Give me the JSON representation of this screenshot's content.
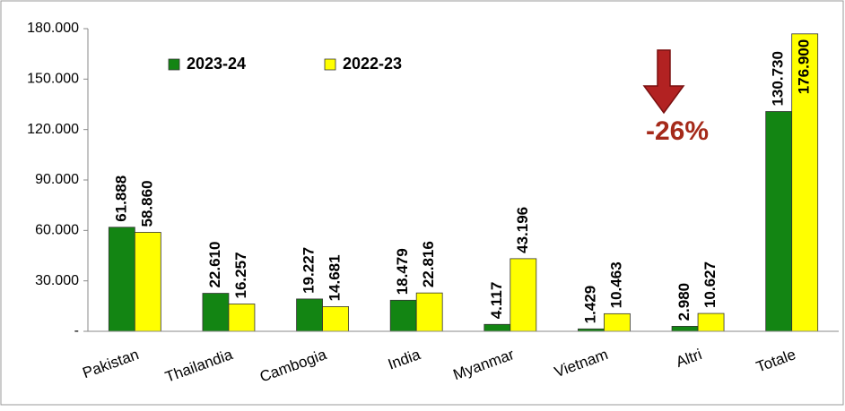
{
  "chart_data": {
    "type": "bar",
    "categories": [
      "Pakistan",
      "Thailandia",
      "Cambogia",
      "India",
      "Myanmar",
      "Vietnam",
      "Altri",
      "Totale"
    ],
    "series": [
      {
        "name": "2023-24",
        "color": "#138513",
        "values": [
          61888,
          22610,
          19227,
          18479,
          4117,
          1429,
          2980,
          130730
        ],
        "value_labels": [
          "61.888",
          "22.610",
          "19.227",
          "18.479",
          "4.117",
          "1.429",
          "2.980",
          "130.730"
        ]
      },
      {
        "name": "2022-23",
        "color": "#ffff00",
        "values": [
          58860,
          16257,
          14681,
          22816,
          43196,
          10463,
          10627,
          176900
        ],
        "value_labels": [
          "58.860",
          "16.257",
          "14.681",
          "22.816",
          "43.196",
          "10.463",
          "10.627",
          "176.900"
        ]
      }
    ],
    "ylim": [
      0,
      180000
    ],
    "yticks": [
      {
        "value": 0,
        "label": "-"
      },
      {
        "value": 30000,
        "label": "30.000"
      },
      {
        "value": 60000,
        "label": "60.000"
      },
      {
        "value": 90000,
        "label": "90.000"
      },
      {
        "value": 120000,
        "label": "120.000"
      },
      {
        "value": 150000,
        "label": "150.000"
      },
      {
        "value": 180000,
        "label": "180.000"
      }
    ],
    "annotation": "-26%",
    "legend": "top-left"
  }
}
